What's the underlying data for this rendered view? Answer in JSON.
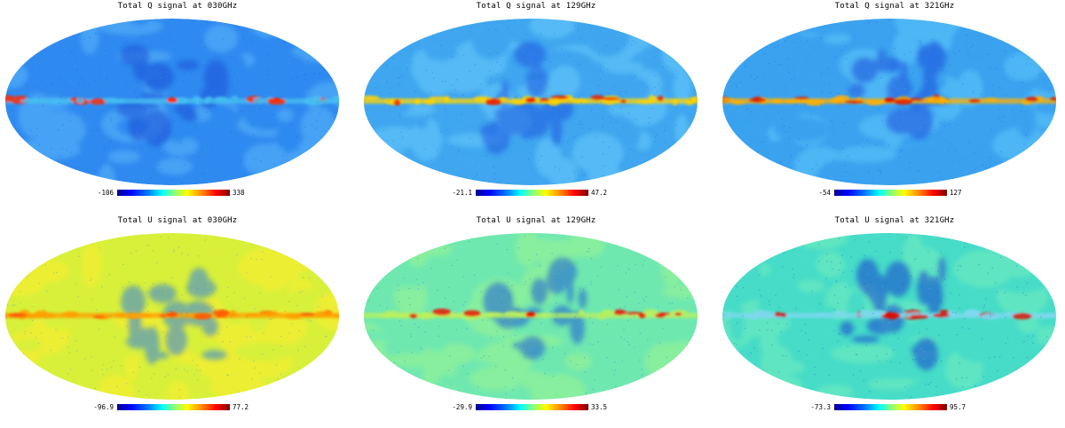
{
  "colors": {
    "colormap": [
      "#00008f",
      "#0000ff",
      "#0080ff",
      "#00ffff",
      "#80ff80",
      "#ffff00",
      "#ff8000",
      "#ff0000",
      "#800000"
    ]
  },
  "panels": [
    {
      "title": "Total Q signal at 030GHz",
      "min": "-106",
      "max": "338",
      "base": "#2f8af0",
      "bg2": "#4ea8f6",
      "plane": "#45c0f0",
      "core": "#ff2a00",
      "dark": "#1a4fd6"
    },
    {
      "title": "Total Q signal at 129GHz",
      "min": "-21.1",
      "max": "47.2",
      "base": "#3fa6ef",
      "bg2": "#5cc0f7",
      "plane": "#ffd400",
      "core": "#ee2200",
      "dark": "#1e58e0"
    },
    {
      "title": "Total Q signal at 321GHz",
      "min": "-54",
      "max": "127",
      "base": "#3aa2ef",
      "bg2": "#52bcf6",
      "plane": "#ffb000",
      "core": "#e01800",
      "dark": "#1c4fdc"
    },
    {
      "title": "Total U signal at 030GHz",
      "min": "-96.9",
      "max": "77.2",
      "base": "#d8f03a",
      "bg2": "#f2ee30",
      "plane": "#ff9f00",
      "core": "#ff5500",
      "dark": "#2f7fe6"
    },
    {
      "title": "Total U signal at 129GHz",
      "min": "-29.9",
      "max": "33.5",
      "base": "#6fe8b0",
      "bg2": "#8ef09a",
      "plane": "#b8f060",
      "core": "#ee1100",
      "dark": "#1f5bd8"
    },
    {
      "title": "Total U signal at 321GHz",
      "min": "-73.3",
      "max": "95.7",
      "base": "#46dcc8",
      "bg2": "#66e8c0",
      "plane": "#7fd8f0",
      "core": "#dd1000",
      "dark": "#1440d0"
    }
  ]
}
